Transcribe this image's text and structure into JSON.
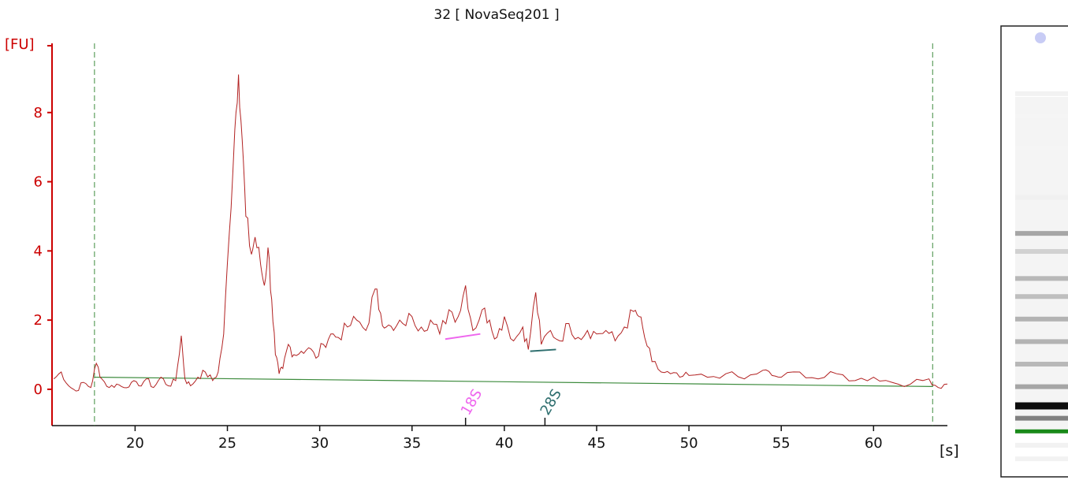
{
  "chart_data": {
    "type": "line",
    "title": "32  [ NovaSeq201 ]",
    "ylabel": "[FU]",
    "xlabel": "[s]",
    "xlim": [
      15.5,
      64
    ],
    "ylim": [
      -1.05,
      10.0
    ],
    "x_ticks": [
      20,
      25,
      30,
      35,
      40,
      45,
      50,
      55,
      60
    ],
    "y_ticks": [
      0,
      2,
      4,
      6,
      8
    ],
    "axis_color": "#cc0000",
    "trace_color": "#b22222",
    "baseline_color": "#3d8b3d",
    "marker_line_color": "#3d8b3d",
    "series": [
      {
        "type": "electropherogram",
        "x": [
          15.6,
          16.0,
          16.4,
          16.8,
          17.2,
          17.6,
          17.9,
          18.2,
          18.6,
          19.0,
          19.4,
          19.8,
          20.2,
          20.6,
          21.0,
          21.4,
          21.8,
          22.2,
          22.5,
          22.7,
          23.0,
          23.4,
          23.8,
          24.2,
          24.5,
          24.8,
          25.1,
          25.4,
          25.6,
          25.8,
          26.0,
          26.3,
          26.5,
          26.8,
          27.0,
          27.2,
          27.4,
          27.6,
          27.8,
          28.0,
          28.3,
          28.6,
          29.0,
          29.4,
          29.8,
          30.2,
          30.6,
          31.0,
          31.5,
          32.0,
          32.5,
          33.0,
          33.3,
          33.6,
          34.0,
          34.5,
          35.0,
          35.5,
          36.0,
          36.5,
          37.0,
          37.5,
          37.9,
          38.3,
          38.8,
          39.2,
          39.6,
          40.0,
          40.5,
          41.0,
          41.3,
          41.7,
          42.0,
          42.5,
          43.0,
          43.5,
          44.0,
          44.5,
          45.0,
          45.5,
          46.0,
          46.5,
          47.0,
          47.3,
          47.6,
          48.0,
          48.5,
          49.0,
          49.5,
          50.0,
          51.0,
          52.0,
          53.0,
          54.0,
          54.5,
          55.0,
          56.0,
          57.0,
          58.0,
          59.0,
          60.0,
          61.0,
          62.0,
          63.0,
          63.5,
          64.0
        ],
        "y": [
          0.3,
          0.5,
          0.1,
          -0.05,
          0.2,
          0.05,
          0.75,
          0.3,
          0.05,
          0.15,
          0.05,
          0.2,
          0.1,
          0.3,
          0.05,
          0.35,
          0.1,
          0.25,
          1.55,
          0.3,
          0.1,
          0.35,
          0.5,
          0.25,
          0.5,
          1.6,
          4.5,
          7.5,
          9.1,
          7.2,
          5.0,
          3.9,
          4.4,
          3.6,
          3.0,
          4.1,
          2.6,
          1.0,
          0.45,
          0.6,
          1.3,
          1.0,
          1.1,
          1.2,
          0.9,
          1.3,
          1.6,
          1.5,
          1.8,
          2.0,
          1.7,
          2.9,
          2.2,
          1.8,
          1.7,
          1.9,
          2.1,
          1.8,
          2.0,
          1.6,
          2.3,
          2.1,
          3.0,
          1.7,
          2.3,
          2.0,
          1.5,
          2.1,
          1.4,
          1.8,
          1.15,
          2.8,
          1.3,
          1.7,
          1.4,
          1.9,
          1.5,
          1.7,
          1.6,
          1.7,
          1.4,
          1.8,
          2.25,
          2.1,
          1.5,
          0.8,
          0.5,
          0.45,
          0.35,
          0.4,
          0.35,
          0.45,
          0.3,
          0.55,
          0.4,
          0.35,
          0.5,
          0.3,
          0.45,
          0.25,
          0.35,
          0.2,
          0.15,
          0.3,
          0.05,
          0.15
        ]
      }
    ],
    "baseline": {
      "x": [
        17.8,
        63.2
      ],
      "y": [
        0.35,
        0.08
      ]
    },
    "lower_marker_x": 17.8,
    "upper_marker_x": 63.2,
    "peaks": [
      {
        "label": "18S",
        "x": 37.9,
        "from": 36.8,
        "to": 38.7,
        "y_from": 1.45,
        "y_to": 1.6,
        "color": "#ee66ee"
      },
      {
        "label": "28S",
        "x": 42.2,
        "from": 41.4,
        "to": 42.8,
        "y_from": 1.1,
        "y_to": 1.15,
        "color": "#2f6f6f"
      }
    ]
  },
  "gel_lane": {
    "bands": [
      {
        "pos": 0.15,
        "intensity": 0.05
      },
      {
        "pos": 0.2,
        "intensity": 0.04
      },
      {
        "pos": 0.27,
        "intensity": 0.04
      },
      {
        "pos": 0.38,
        "intensity": 0.06
      },
      {
        "pos": 0.46,
        "intensity": 0.35
      },
      {
        "pos": 0.5,
        "intensity": 0.18
      },
      {
        "pos": 0.56,
        "intensity": 0.28
      },
      {
        "pos": 0.6,
        "intensity": 0.25
      },
      {
        "pos": 0.65,
        "intensity": 0.3
      },
      {
        "pos": 0.7,
        "intensity": 0.3
      },
      {
        "pos": 0.75,
        "intensity": 0.28
      },
      {
        "pos": 0.8,
        "intensity": 0.35
      },
      {
        "pos": 0.84,
        "intensity": 0.95
      },
      {
        "pos": 0.87,
        "intensity": 0.5
      },
      {
        "pos": 0.93,
        "intensity": 0.05
      },
      {
        "pos": 0.96,
        "intensity": 0.05
      }
    ],
    "marker_band_color": "#1a8a1a",
    "marker_band_pos": 0.9
  }
}
